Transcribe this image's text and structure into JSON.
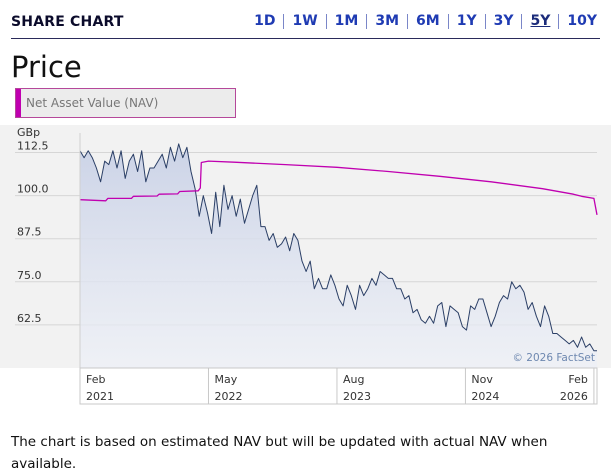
{
  "header": {
    "title": "SHARE CHART"
  },
  "ranges": [
    {
      "label": "1D",
      "active": false
    },
    {
      "label": "1W",
      "active": false
    },
    {
      "label": "1M",
      "active": false
    },
    {
      "label": "3M",
      "active": false
    },
    {
      "label": "6M",
      "active": false
    },
    {
      "label": "1Y",
      "active": false
    },
    {
      "label": "3Y",
      "active": false
    },
    {
      "label": "5Y",
      "active": true
    },
    {
      "label": "10Y",
      "active": false
    }
  ],
  "price_title": "Price",
  "legend": {
    "label": "Net Asset Value (NAV)",
    "color": "#c000b0"
  },
  "chart_data": {
    "type": "line",
    "ylabel": "GBp",
    "ylim": [
      50,
      117
    ],
    "yticks": [
      "112.5",
      "100.0",
      "87.5",
      "75.0",
      "62.5"
    ],
    "ytick_values": [
      112.5,
      100.0,
      87.5,
      75.0,
      62.5
    ],
    "xticks": [
      {
        "month": "Feb",
        "year": "2021",
        "t": 0.0
      },
      {
        "month": "May",
        "year": "2022",
        "t": 1.25
      },
      {
        "month": "Aug",
        "year": "2023",
        "t": 2.5
      },
      {
        "month": "Nov",
        "year": "2024",
        "t": 3.75
      },
      {
        "month": "Feb",
        "year": "2026",
        "t": 5.0
      }
    ],
    "xlim": [
      0,
      5.03
    ],
    "credit": "© 2026 FactSet",
    "series": [
      {
        "name": "Price",
        "color": "#2b3f66",
        "t": [
          0.0,
          0.04,
          0.08,
          0.12,
          0.16,
          0.2,
          0.24,
          0.28,
          0.32,
          0.36,
          0.4,
          0.44,
          0.48,
          0.52,
          0.56,
          0.6,
          0.64,
          0.68,
          0.72,
          0.76,
          0.8,
          0.84,
          0.88,
          0.92,
          0.96,
          1.0,
          1.04,
          1.08,
          1.12,
          1.16,
          1.2,
          1.24,
          1.28,
          1.32,
          1.36,
          1.4,
          1.44,
          1.48,
          1.52,
          1.56,
          1.6,
          1.64,
          1.68,
          1.72,
          1.76,
          1.8,
          1.84,
          1.88,
          1.92,
          1.96,
          2.0,
          2.04,
          2.08,
          2.12,
          2.16,
          2.2,
          2.24,
          2.28,
          2.32,
          2.36,
          2.4,
          2.44,
          2.48,
          2.52,
          2.56,
          2.6,
          2.64,
          2.68,
          2.72,
          2.76,
          2.8,
          2.84,
          2.88,
          2.92,
          2.96,
          3.0,
          3.04,
          3.08,
          3.12,
          3.16,
          3.2,
          3.24,
          3.28,
          3.32,
          3.36,
          3.4,
          3.44,
          3.48,
          3.52,
          3.56,
          3.6,
          3.64,
          3.68,
          3.72,
          3.76,
          3.8,
          3.84,
          3.88,
          3.92,
          3.96,
          4.0,
          4.04,
          4.08,
          4.12,
          4.16,
          4.2,
          4.24,
          4.28,
          4.32,
          4.36,
          4.4,
          4.44,
          4.48,
          4.52,
          4.56,
          4.6,
          4.64,
          4.68,
          4.72,
          4.76,
          4.8,
          4.84,
          4.88,
          4.92,
          4.96,
          5.0,
          5.03
        ],
        "values": [
          113,
          111,
          113,
          111,
          108,
          104,
          110,
          109,
          113,
          108,
          113,
          105,
          110,
          112,
          107,
          113,
          104,
          108,
          108,
          110,
          112,
          108,
          114,
          110,
          115,
          111,
          114,
          107,
          102,
          94,
          100,
          95,
          89,
          101,
          91,
          103,
          96,
          100,
          94,
          99,
          92,
          96,
          100,
          103,
          91,
          91,
          87,
          89,
          85,
          86,
          88,
          84,
          89,
          87,
          81,
          78,
          81,
          73,
          76,
          73,
          73,
          77,
          74,
          70,
          68,
          74,
          71,
          67,
          74,
          71,
          73,
          76,
          74,
          78,
          77,
          76,
          76,
          73,
          73,
          70,
          71,
          66,
          67,
          64,
          63,
          65,
          63,
          68,
          69,
          62,
          68,
          67,
          66,
          62,
          61,
          68,
          67,
          70,
          70,
          66,
          62,
          65,
          69,
          71,
          70,
          75,
          73,
          74,
          72,
          67,
          69,
          65,
          62,
          68,
          65,
          60,
          60,
          59,
          58,
          57,
          58,
          56,
          59,
          56,
          57,
          55,
          55
        ],
        "fill": true
      },
      {
        "name": "Net Asset Value (NAV)",
        "color": "#c000b0",
        "t": [
          0.0,
          0.25,
          0.27,
          0.5,
          0.52,
          0.75,
          0.77,
          0.95,
          0.97,
          1.15,
          1.17,
          1.18,
          1.25,
          1.5,
          2.0,
          2.5,
          3.0,
          3.5,
          4.0,
          4.5,
          4.8,
          4.88,
          5.0,
          5.03
        ],
        "values": [
          98.8,
          98.5,
          99.2,
          99.2,
          99.8,
          99.9,
          100.4,
          100.5,
          101.2,
          101.4,
          102.2,
          109.6,
          110.0,
          109.7,
          109.0,
          108.2,
          107.0,
          105.6,
          104.0,
          102.0,
          100.4,
          99.8,
          99.2,
          94.4
        ],
        "fill": false
      }
    ]
  },
  "footnote": "The chart is based on estimated NAV but will be updated with actual NAV when available."
}
